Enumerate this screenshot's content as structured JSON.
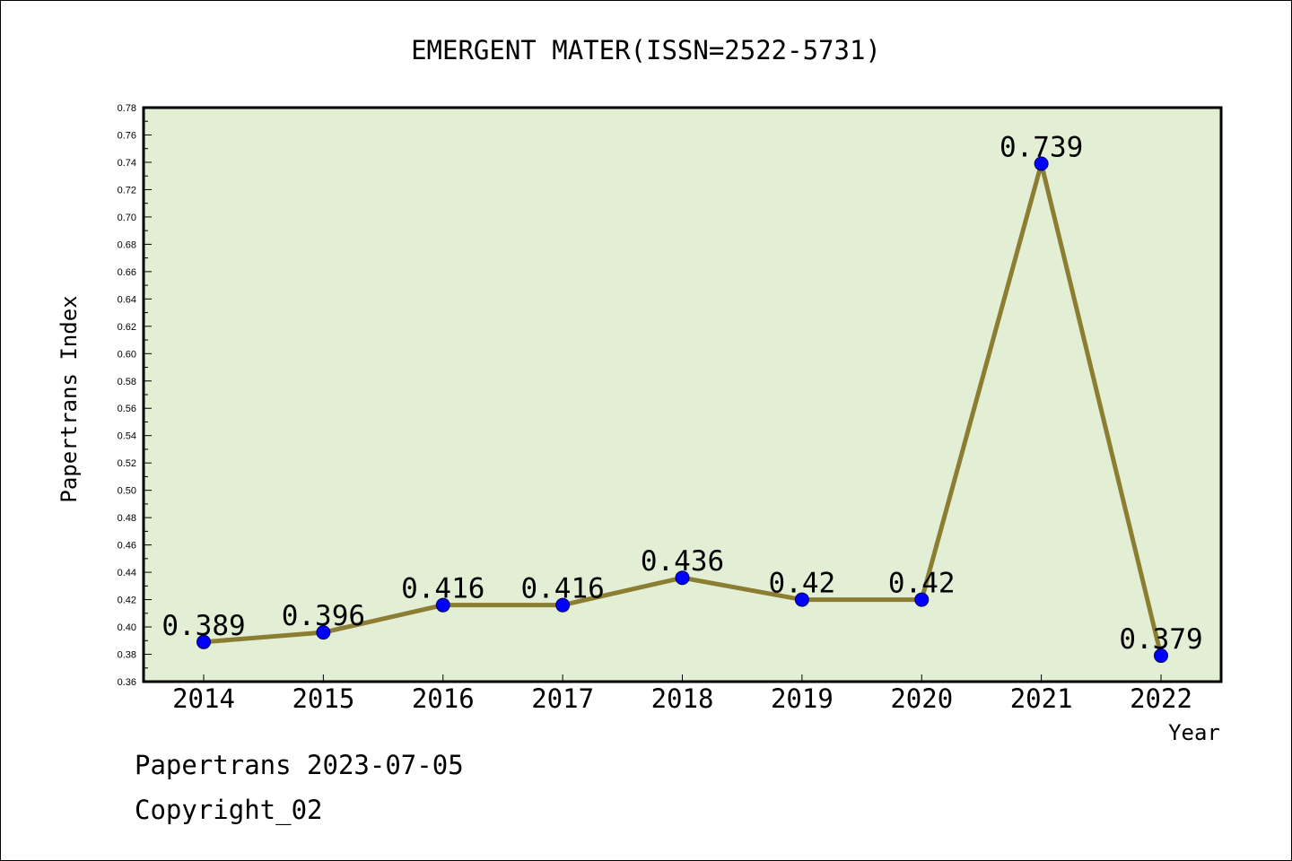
{
  "chart_data": {
    "type": "line",
    "title": "EMERGENT MATER(ISSN=2522-5731)",
    "xlabel": "Year",
    "ylabel": "Papertrans Index",
    "categories": [
      "2014",
      "2015",
      "2016",
      "2017",
      "2018",
      "2019",
      "2020",
      "2021",
      "2022"
    ],
    "values": [
      0.389,
      0.396,
      0.416,
      0.416,
      0.436,
      0.42,
      0.42,
      0.739,
      0.379
    ],
    "data_labels": [
      "0.389",
      "0.396",
      "0.416",
      "0.416",
      "0.436",
      "0.42",
      "0.42",
      "0.739",
      "0.379"
    ],
    "ylim": [
      0.36,
      0.78
    ],
    "ytick_step": 0.02,
    "ytick_labels": [
      "0.36",
      "0.38",
      "0.40",
      "0.42",
      "0.44",
      "0.46",
      "0.48",
      "0.50",
      "0.52",
      "0.54",
      "0.56",
      "0.58",
      "0.60",
      "0.62",
      "0.64",
      "0.66",
      "0.68",
      "0.70",
      "0.72",
      "0.74",
      "0.76",
      "0.78"
    ],
    "grid": false,
    "colors": {
      "plot_background": "#e2efd4",
      "line": "#8b7d32",
      "marker": "#0000ff"
    }
  },
  "footer": {
    "line1": "Papertrans 2023-07-05",
    "line2": "Copyright_02"
  }
}
